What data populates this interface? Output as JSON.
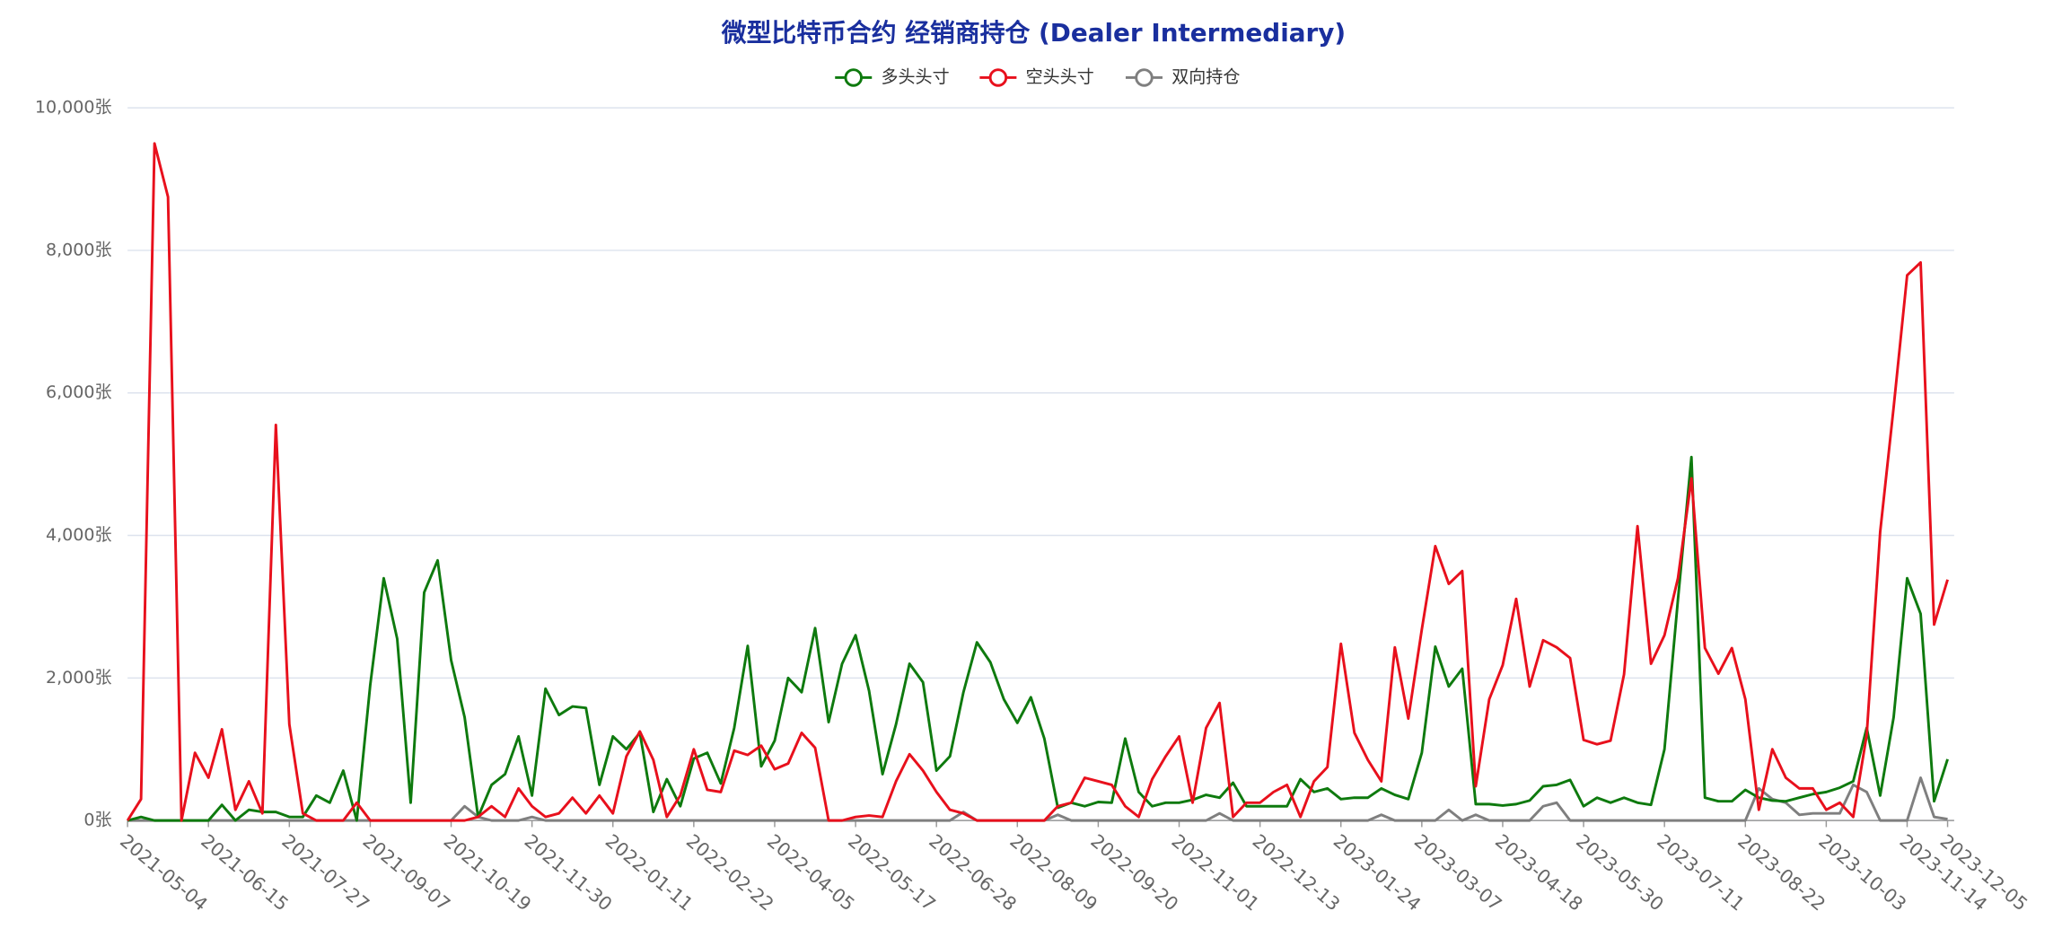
{
  "chart_data": {
    "type": "line",
    "title": "微型比特币合约 经销商持仓 (Dealer Intermediary)",
    "categories": [
      "2021-05-04",
      null,
      null,
      null,
      null,
      null,
      "2021-06-15",
      null,
      null,
      null,
      null,
      null,
      "2021-07-27",
      null,
      null,
      null,
      null,
      null,
      "2021-09-07",
      null,
      null,
      null,
      null,
      null,
      "2021-10-19",
      null,
      null,
      null,
      null,
      null,
      "2021-11-30",
      null,
      null,
      null,
      null,
      null,
      "2022-01-11",
      null,
      null,
      null,
      null,
      null,
      "2022-02-22",
      null,
      null,
      null,
      null,
      null,
      "2022-04-05",
      null,
      null,
      null,
      null,
      null,
      "2022-05-17",
      null,
      null,
      null,
      null,
      null,
      "2022-06-28",
      null,
      null,
      null,
      null,
      null,
      "2022-08-09",
      null,
      null,
      null,
      null,
      null,
      "2022-09-20",
      null,
      null,
      null,
      null,
      null,
      "2022-11-01",
      null,
      null,
      null,
      null,
      null,
      "2022-12-13",
      null,
      null,
      null,
      null,
      null,
      "2023-01-24",
      null,
      null,
      null,
      null,
      null,
      "2023-03-07",
      null,
      null,
      null,
      null,
      null,
      "2023-04-18",
      null,
      null,
      null,
      null,
      null,
      "2023-05-30",
      null,
      null,
      null,
      null,
      null,
      "2023-07-11",
      null,
      null,
      null,
      null,
      null,
      "2023-08-22",
      null,
      null,
      null,
      null,
      null,
      "2023-10-03",
      null,
      null,
      null,
      null,
      null,
      "2023-11-14",
      null,
      null,
      "2023-12-05"
    ],
    "series": [
      {
        "name": "多头头寸",
        "color": "#0e7a0e",
        "values": [
          0,
          50,
          0,
          0,
          0,
          0,
          0,
          220,
          0,
          150,
          120,
          120,
          50,
          50,
          350,
          250,
          700,
          0,
          1900,
          3400,
          2550,
          250,
          3200,
          3650,
          2250,
          1450,
          50,
          500,
          650,
          1180,
          350,
          1850,
          1480,
          1600,
          1580,
          500,
          1180,
          1000,
          1230,
          120,
          580,
          200,
          870,
          950,
          520,
          1300,
          2450,
          760,
          1120,
          2000,
          1800,
          2700,
          1380,
          2200,
          2600,
          1820,
          650,
          1350,
          2200,
          1940,
          700,
          900,
          1800,
          2500,
          2220,
          1700,
          1370,
          1730,
          1150,
          180,
          250,
          200,
          260,
          250,
          1150,
          400,
          200,
          250,
          250,
          290,
          360,
          320,
          530,
          200,
          200,
          200,
          200,
          580,
          400,
          450,
          300,
          320,
          320,
          450,
          360,
          300,
          950,
          2440,
          1880,
          2130,
          230,
          230,
          210,
          230,
          280,
          480,
          500,
          570,
          200,
          320,
          250,
          320,
          250,
          220,
          1000,
          3100,
          5100,
          320,
          270,
          270,
          430,
          320,
          280,
          270,
          320,
          370,
          400,
          460,
          550,
          1300,
          350,
          1450,
          3400,
          2900,
          270,
          860
        ]
      },
      {
        "name": "空头头寸",
        "color": "#e8101c",
        "values": [
          0,
          300,
          9500,
          8750,
          0,
          950,
          600,
          1280,
          150,
          550,
          100,
          5550,
          1350,
          100,
          0,
          0,
          0,
          250,
          0,
          0,
          0,
          0,
          0,
          0,
          0,
          0,
          50,
          200,
          50,
          450,
          200,
          50,
          100,
          320,
          100,
          350,
          100,
          900,
          1250,
          850,
          50,
          350,
          1000,
          430,
          400,
          980,
          920,
          1050,
          720,
          800,
          1230,
          1020,
          0,
          0,
          50,
          70,
          50,
          550,
          930,
          700,
          400,
          150,
          100,
          0,
          0,
          0,
          0,
          0,
          0,
          200,
          250,
          600,
          550,
          500,
          200,
          50,
          580,
          900,
          1180,
          250,
          1300,
          1650,
          50,
          250,
          250,
          400,
          500,
          50,
          550,
          750,
          2480,
          1230,
          850,
          550,
          2430,
          1430,
          2680,
          3850,
          3320,
          3500,
          480,
          1700,
          2180,
          3110,
          1880,
          2530,
          2430,
          2280,
          1130,
          1070,
          1120,
          2050,
          4130,
          2200,
          2600,
          3400,
          4800,
          2420,
          2060,
          2420,
          1700,
          150,
          1000,
          600,
          450,
          450,
          150,
          250,
          50,
          1200,
          4050,
          5800,
          7650,
          7830,
          2750,
          3380
        ]
      },
      {
        "name": "双向持仓",
        "color": "#7f7f7f",
        "values": [
          0,
          0,
          0,
          0,
          0,
          0,
          0,
          0,
          0,
          0,
          0,
          0,
          0,
          0,
          0,
          0,
          0,
          0,
          0,
          0,
          0,
          0,
          0,
          0,
          0,
          200,
          50,
          0,
          0,
          0,
          50,
          0,
          0,
          0,
          0,
          0,
          0,
          0,
          0,
          0,
          0,
          0,
          0,
          0,
          0,
          0,
          0,
          0,
          0,
          0,
          0,
          0,
          0,
          0,
          0,
          0,
          0,
          0,
          0,
          0,
          0,
          0,
          120,
          0,
          0,
          0,
          0,
          0,
          0,
          80,
          0,
          0,
          0,
          0,
          0,
          0,
          0,
          0,
          0,
          0,
          0,
          100,
          0,
          0,
          0,
          0,
          0,
          0,
          0,
          0,
          0,
          0,
          0,
          80,
          0,
          0,
          0,
          0,
          150,
          0,
          80,
          0,
          0,
          0,
          0,
          200,
          250,
          0,
          0,
          0,
          0,
          0,
          0,
          0,
          0,
          0,
          0,
          0,
          0,
          0,
          0,
          450,
          300,
          250,
          80,
          100,
          100,
          100,
          500,
          400,
          0,
          0,
          0,
          600,
          50,
          20
        ]
      }
    ],
    "ylim": [
      0,
      10000
    ],
    "yticks": [
      {
        "value": 0,
        "label": "0张"
      },
      {
        "value": 2000,
        "label": "2,000张"
      },
      {
        "value": 4000,
        "label": "4,000张"
      },
      {
        "value": 6000,
        "label": "6,000张"
      },
      {
        "value": 8000,
        "label": "8,000张"
      },
      {
        "value": 10000,
        "label": "10,000张"
      }
    ],
    "grid": true
  }
}
